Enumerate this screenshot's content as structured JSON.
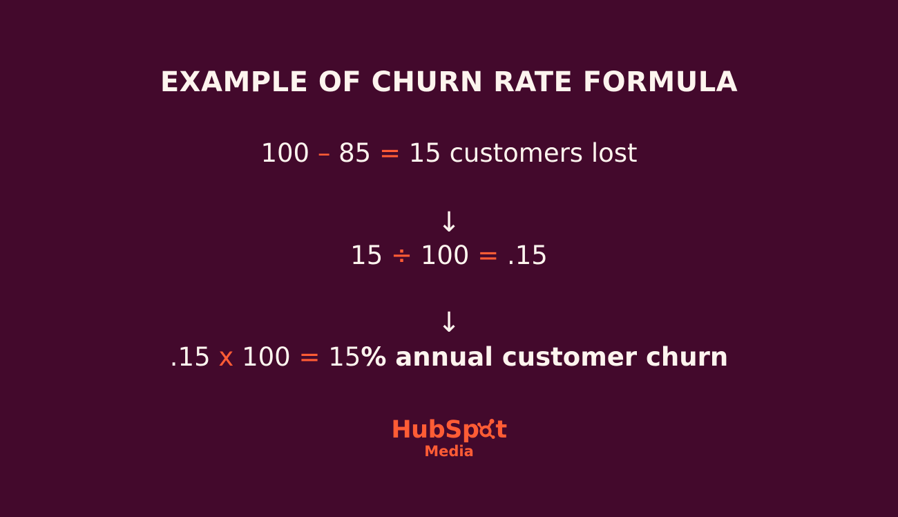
{
  "title": "EXAMPLE OF CHURN RATE FORMULA",
  "step1": {
    "a": "100",
    "op1": "–",
    "b": "85",
    "eq": "=",
    "result": "15 customers lost"
  },
  "arrow1": "↓",
  "step2": {
    "a": "15",
    "op1": "÷",
    "b": "100",
    "eq": "=",
    "result": ".15"
  },
  "arrow2": "↓",
  "step3": {
    "a": ".15",
    "op1": "x",
    "b": "100",
    "eq": "=",
    "result_num": "15",
    "result_text": "% annual customer churn"
  },
  "logo": {
    "brand_pre": "HubSp",
    "brand_post": "t",
    "sub": "Media",
    "icon": "sprocket-icon"
  },
  "colors": {
    "background": "#43092c",
    "text": "#fdf4ee",
    "accent": "#ff5c35"
  }
}
